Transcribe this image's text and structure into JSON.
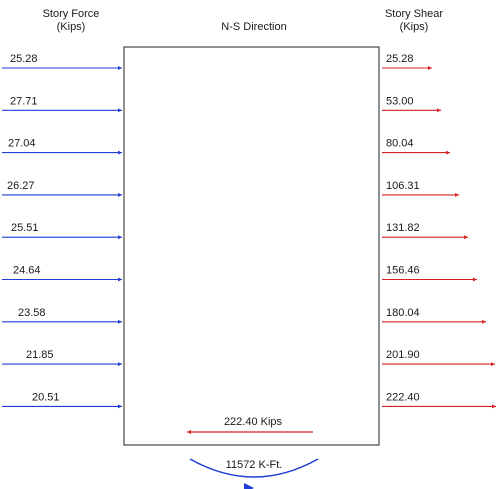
{
  "headers": {
    "story_force_line1": "Story Force",
    "story_force_line2": "(Kips)",
    "direction": "N-S Direction",
    "story_shear_line1": "Story Shear",
    "story_shear_line2": "(Kips)"
  },
  "story_forces": [
    "25.28",
    "27.71",
    "27.04",
    "26.27",
    "25.51",
    "24.64",
    "23.58",
    "21.85",
    "20.51"
  ],
  "story_shears": [
    "25.28",
    "53.00",
    "80.04",
    "106.31",
    "131.82",
    "156.46",
    "180.04",
    "201.90",
    "222.40"
  ],
  "base_shear_label": "222.40 Kips",
  "base_moment_label": "11572 K-Ft.",
  "colors": {
    "force_arrow": "#1f3fd6",
    "shear_arrow": "#d62222",
    "outline": "#222222",
    "moment_arrow": "#1f3fd6"
  }
}
